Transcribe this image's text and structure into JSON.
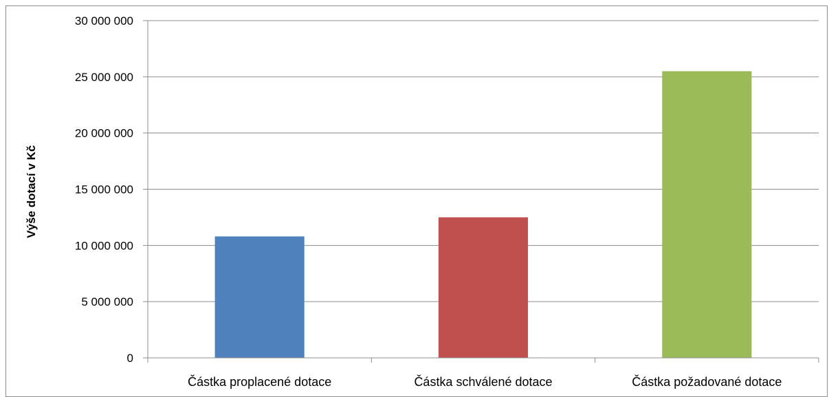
{
  "chart_data": {
    "type": "bar",
    "title": "",
    "xlabel": "",
    "ylabel": "Výše dotací v Kč",
    "categories": [
      "Částka proplacené dotace",
      "Částka schválené dotace",
      "Částka požadované dotace"
    ],
    "values": [
      10800000,
      12500000,
      25500000
    ],
    "colors": [
      "#4f81bd",
      "#c0504d",
      "#9bbb59"
    ],
    "ylim": [
      0,
      30000000
    ],
    "yticks": [
      0,
      5000000,
      10000000,
      15000000,
      20000000,
      25000000,
      30000000
    ],
    "ytick_labels": [
      "0",
      "5 000 000",
      "10 000 000",
      "15 000 000",
      "20 000 000",
      "25 000 000",
      "30 000 000"
    ],
    "grid": true,
    "legend": "none"
  }
}
